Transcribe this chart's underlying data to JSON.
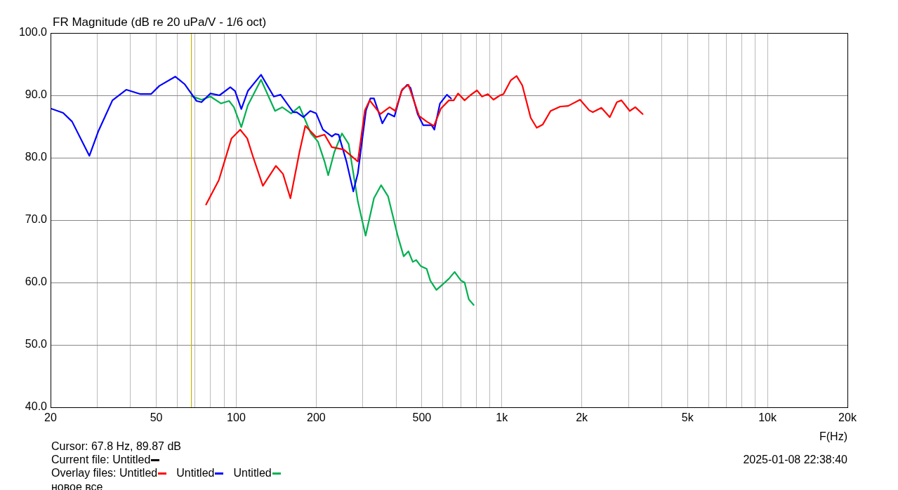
{
  "chart_data": {
    "type": "line",
    "title": "FR Magnitude (dB re 20 uPa/V - 1/6 oct)",
    "xlabel": "F(Hz)",
    "log": "x",
    "grid": true,
    "legend": "bottom left",
    "legend_title": "Overlay files:",
    "marker": "none",
    "line_style": "solid",
    "xlim": [
      20,
      20000
    ],
    "xticks": [
      20,
      {
        "value": 30,
        "label": null
      },
      {
        "value": 40,
        "label": null
      },
      50,
      {
        "value": 60,
        "label": null
      },
      {
        "value": 70,
        "label": null
      },
      {
        "value": 80,
        "label": null
      },
      {
        "value": 90,
        "label": null
      },
      100,
      200,
      {
        "value": 300,
        "label": null
      },
      {
        "value": 400,
        "label": null
      },
      500,
      {
        "value": 600,
        "label": null
      },
      {
        "value": 700,
        "label": null
      },
      {
        "value": 800,
        "label": null
      },
      {
        "value": 900,
        "label": null
      },
      {
        "value": 1000,
        "label": "1k"
      },
      {
        "value": 2000,
        "label": "2k"
      },
      {
        "value": 3000,
        "label": null
      },
      {
        "value": 4000,
        "label": null
      },
      {
        "value": 5000,
        "label": "5k"
      },
      {
        "value": 6000,
        "label": null
      },
      {
        "value": 7000,
        "label": null
      },
      {
        "value": 8000,
        "label": null
      },
      {
        "value": 9000,
        "label": null
      },
      {
        "value": 10000,
        "label": "10k"
      },
      {
        "value": 20000,
        "label": "20k"
      }
    ],
    "ylim": [
      40,
      100
    ],
    "yticks": [
      {
        "value": 40,
        "label": "40.0"
      },
      {
        "value": 50,
        "label": "50.0"
      },
      {
        "value": 60,
        "label": "60.0"
      },
      {
        "value": 70,
        "label": "70.0"
      },
      {
        "value": 80,
        "label": "80.0"
      },
      {
        "value": 90,
        "label": "90.0"
      },
      {
        "value": 100,
        "label": "100.0"
      }
    ],
    "ref_lines": [
      {
        "axis": "x",
        "value": 67.8,
        "color": "#c8b400"
      }
    ],
    "annotations": [
      "Cursor: 67.8 Hz, 89.87 dB",
      "Current file: Untitled",
      "2025-01-08  22:38:40",
      "новое все"
    ],
    "series": [
      {
        "name": "Untitled",
        "color": "#ff0000",
        "x": [
          77,
          86,
          96,
          103.5,
          110,
          115.6,
          126,
          141,
          150,
          160,
          173,
          182,
          200,
          215,
          229,
          254,
          287,
          305,
          318,
          349,
          378,
          397,
          422,
          445,
          488,
          521,
          555,
          590,
          632,
          659,
          684,
          724,
          760,
          806,
          842,
          886,
          930,
          984,
          1014,
          1080,
          1136,
          1194,
          1284,
          1353,
          1424,
          1526,
          1660,
          1776,
          1970,
          2133,
          2200,
          2370,
          2550,
          2710,
          2820,
          3030,
          3180,
          3390
        ],
        "values": [
          72.5,
          76.4,
          83.1,
          84.5,
          83.1,
          80.2,
          75.5,
          78.7,
          77.4,
          73.5,
          80.9,
          85.1,
          83.3,
          83.7,
          81.7,
          81.3,
          79.4,
          87.6,
          89.2,
          87.0,
          88.1,
          87.5,
          91.0,
          91.7,
          86.7,
          85.8,
          85.1,
          87.9,
          89.2,
          89.2,
          90.3,
          89.2,
          90.0,
          90.8,
          89.8,
          90.2,
          89.3,
          90.0,
          90.2,
          92.4,
          93.1,
          91.6,
          86.4,
          84.8,
          85.3,
          87.5,
          88.2,
          88.3,
          89.3,
          87.6,
          87.3,
          88.0,
          86.5,
          88.9,
          89.2,
          87.5,
          88.1,
          87.0
        ]
      },
      {
        "name": "Untitled",
        "color": "#0000ff",
        "x": [
          20,
          22.3,
          24.1,
          28,
          30.3,
          34.2,
          38.6,
          43.6,
          47.8,
          51.3,
          59,
          63.9,
          70.9,
          74,
          80,
          86.5,
          95,
          99,
          104.5,
          110.6,
          124,
          138.5,
          147,
          164,
          169,
          179,
          190,
          200,
          212,
          229,
          236,
          243,
          260,
          276,
          287,
          308,
          320,
          330,
          355,
          373,
          394,
          419,
          440,
          453,
          482,
          506,
          544,
          557,
          585,
          621,
          644
        ],
        "values": [
          87.9,
          87.2,
          85.8,
          80.3,
          84.3,
          89.2,
          90.9,
          90.2,
          90.2,
          91.5,
          93.0,
          91.8,
          89.1,
          88.9,
          90.3,
          90.0,
          91.3,
          90.7,
          87.8,
          90.7,
          93.3,
          89.8,
          90.1,
          87.3,
          87.3,
          86.5,
          87.5,
          87.1,
          84.5,
          83.4,
          83.8,
          83.7,
          79.4,
          74.6,
          77.5,
          87.6,
          89.5,
          89.5,
          85.5,
          87.1,
          86.6,
          90.7,
          91.7,
          91.2,
          87.0,
          85.2,
          85.2,
          84.5,
          88.7,
          90.1,
          89.5
        ]
      },
      {
        "name": "Untitled",
        "color": "#00b050",
        "x": [
          67.8,
          74,
          80,
          87.7,
          94,
          98,
          104.5,
          110.6,
          124,
          140,
          149,
          161,
          173,
          191,
          203,
          215,
          222,
          234,
          250,
          265,
          287,
          307,
          330,
          351,
          373,
          406,
          427,
          445,
          462,
          476,
          496,
          521,
          538,
          567,
          595,
          632,
          664,
          702,
          724,
          751,
          783
        ],
        "values": [
          89.9,
          89.3,
          89.8,
          88.7,
          89.1,
          88.1,
          84.9,
          88.4,
          92.5,
          87.5,
          88.1,
          87.1,
          88.2,
          83.9,
          82.6,
          79.4,
          77.2,
          80.9,
          83.9,
          82.2,
          73.0,
          67.5,
          73.5,
          75.6,
          73.8,
          67.4,
          64.2,
          65.0,
          63.3,
          63.6,
          62.6,
          62.2,
          60.3,
          58.8,
          59.6,
          60.6,
          61.7,
          60.3,
          60.0,
          57.3,
          56.4
        ]
      }
    ]
  }
}
